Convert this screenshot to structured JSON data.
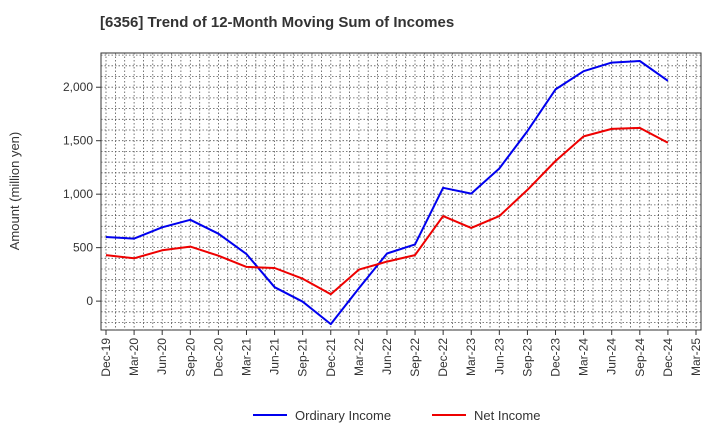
{
  "chart_data": {
    "type": "line",
    "title": "[6356]  Trend of 12-Month Moving Sum of Incomes",
    "xlabel": "",
    "ylabel": "Amount (million yen)",
    "ylim": [
      -270,
      2320
    ],
    "yticks": [
      0,
      500,
      1000,
      1500,
      2000
    ],
    "ytick_labels": [
      "0",
      "500",
      "1,000",
      "1,500",
      "2,000"
    ],
    "grid": true,
    "legend_position": "bottom",
    "x": [
      "Dec-19",
      "Mar-20",
      "Jun-20",
      "Sep-20",
      "Dec-20",
      "Mar-21",
      "Jun-21",
      "Sep-21",
      "Dec-21",
      "Mar-22",
      "Jun-22",
      "Sep-22",
      "Dec-22",
      "Mar-23",
      "Jun-23",
      "Sep-23",
      "Dec-23",
      "Mar-24",
      "Jun-24",
      "Sep-24",
      "Dec-24",
      "Mar-25"
    ],
    "series": [
      {
        "name": "Ordinary Income",
        "color": "#0000ee",
        "values": [
          600,
          585,
          690,
          760,
          630,
          440,
          130,
          -5,
          -215,
          120,
          445,
          530,
          1060,
          1005,
          1240,
          1590,
          1980,
          2150,
          2230,
          2245,
          2060,
          null
        ]
      },
      {
        "name": "Net Income",
        "color": "#ee0000",
        "values": [
          430,
          400,
          475,
          510,
          425,
          320,
          310,
          210,
          65,
          295,
          370,
          430,
          795,
          685,
          795,
          1040,
          1310,
          1540,
          1610,
          1620,
          1480,
          null
        ]
      }
    ]
  }
}
